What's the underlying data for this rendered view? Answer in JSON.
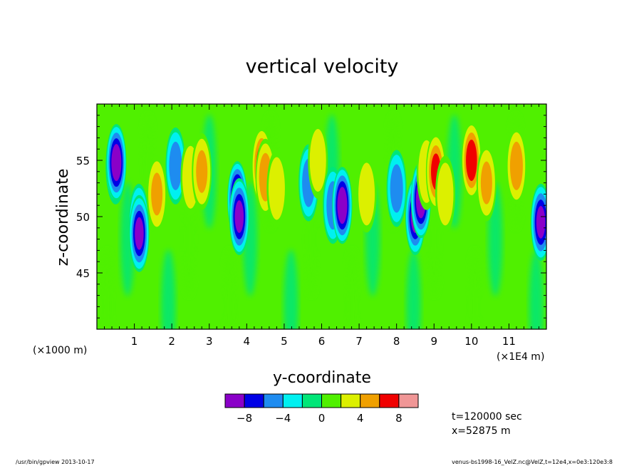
{
  "chart_data": {
    "type": "heatmap",
    "title": "vertical velocity",
    "xlabel": "y-coordinate",
    "ylabel": "z-coordinate",
    "x_unit_left": "(×1000 m)",
    "x_unit_right": "(×1E4 m)",
    "x_ticks": [
      "1",
      "2",
      "3",
      "4",
      "5",
      "6",
      "7",
      "8",
      "9",
      "10",
      "11"
    ],
    "y_ticks": [
      "45",
      "50",
      "55"
    ],
    "xlim": [
      0,
      120000
    ],
    "ylim": [
      40000,
      60000
    ],
    "colorbar": {
      "levels": [
        -10,
        -8,
        -6,
        -4,
        -2,
        0,
        2,
        4,
        6,
        8,
        10
      ],
      "tick_labels": [
        "−8",
        "−4",
        "0",
        "4",
        "8"
      ],
      "colors": [
        "#8a00c8",
        "#0000e6",
        "#1e8cf0",
        "#00f0f0",
        "#00e678",
        "#50f000",
        "#dcf000",
        "#f0a000",
        "#f00000",
        "#f09696"
      ]
    },
    "annotations": [
      "t=120000 sec",
      "x=52875 m"
    ],
    "footer_left": "/usr/bin/gpview  2013-10-17",
    "footer_right": "venus-bs1998-16_VelZ.nc@VelZ,t=12e4,x=0e3:120e3:8",
    "features": [
      {
        "y": 5000,
        "z": 54500,
        "v": -6
      },
      {
        "y": 5200,
        "z": 54800,
        "v": -9
      },
      {
        "y": 11200,
        "z": 49500,
        "v": -6
      },
      {
        "y": 11300,
        "z": 48500,
        "v": -8
      },
      {
        "y": 16000,
        "z": 52000,
        "v": 4
      },
      {
        "y": 21000,
        "z": 54500,
        "v": -5
      },
      {
        "y": 25000,
        "z": 53500,
        "v": 3
      },
      {
        "y": 28000,
        "z": 54000,
        "v": 4
      },
      {
        "y": 37500,
        "z": 51500,
        "v": -10
      },
      {
        "y": 38000,
        "z": 50000,
        "v": -8
      },
      {
        "y": 44000,
        "z": 54500,
        "v": 7
      },
      {
        "y": 45000,
        "z": 53500,
        "v": 5
      },
      {
        "y": 48000,
        "z": 52500,
        "v": 3
      },
      {
        "y": 56500,
        "z": 53000,
        "v": -5
      },
      {
        "y": 59000,
        "z": 55000,
        "v": 3
      },
      {
        "y": 63000,
        "z": 51000,
        "v": -5
      },
      {
        "y": 65500,
        "z": 51000,
        "v": -9
      },
      {
        "y": 72000,
        "z": 52000,
        "v": 3
      },
      {
        "y": 80000,
        "z": 52500,
        "v": -5
      },
      {
        "y": 85000,
        "z": 50000,
        "v": -8
      },
      {
        "y": 86500,
        "z": 51500,
        "v": -9
      },
      {
        "y": 88000,
        "z": 54000,
        "v": 3
      },
      {
        "y": 90500,
        "z": 54000,
        "v": 6
      },
      {
        "y": 93000,
        "z": 52000,
        "v": 3
      },
      {
        "y": 100000,
        "z": 55000,
        "v": 7
      },
      {
        "y": 104000,
        "z": 53000,
        "v": 4
      },
      {
        "y": 112000,
        "z": 54500,
        "v": 5
      },
      {
        "y": 118500,
        "z": 49500,
        "v": -8
      }
    ]
  }
}
